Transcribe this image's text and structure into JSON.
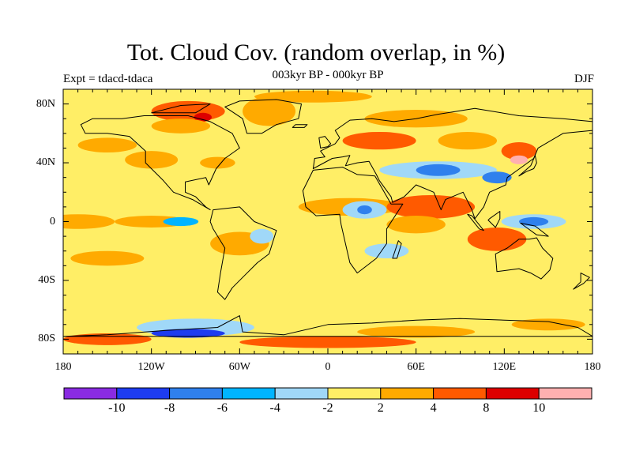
{
  "title": "Tot. Cloud Cov. (random overlap, in %)",
  "subtitle": "003kyr BP - 000kyr BP",
  "experiment": "Expt = tdacd-tdaca",
  "season": "DJF",
  "map": {
    "projection": "cylindrical-equidistant",
    "lon_range": [
      -180,
      180
    ],
    "lat_range": [
      -90,
      90
    ],
    "lat_ticks": [
      {
        "value": 80,
        "label": "80N"
      },
      {
        "value": 40,
        "label": "40N"
      },
      {
        "value": 0,
        "label": "0"
      },
      {
        "value": -40,
        "label": "40S"
      },
      {
        "value": -80,
        "label": "80S"
      }
    ],
    "lon_ticks": [
      {
        "value": -180,
        "label": "180"
      },
      {
        "value": -120,
        "label": "120W"
      },
      {
        "value": -60,
        "label": "60W"
      },
      {
        "value": 0,
        "label": "0"
      },
      {
        "value": 60,
        "label": "60E"
      },
      {
        "value": 120,
        "label": "120E"
      },
      {
        "value": 180,
        "label": "180"
      }
    ],
    "background_color": "#ffee66",
    "coastline_color": "#000000"
  },
  "colorbar": {
    "colors": [
      "#8a2be2",
      "#1e3cf0",
      "#2f80ed",
      "#00b4ff",
      "#a0d8f8",
      "#ffee66",
      "#ffaa00",
      "#ff5a00",
      "#dd0000",
      "#ffb0b0"
    ],
    "labels": [
      "-10",
      "-8",
      "-6",
      "-4",
      "-2",
      "2",
      "4",
      "8",
      "10"
    ]
  },
  "anomaly_regions": [
    {
      "lon": -95,
      "lat": 75,
      "rx": 25,
      "ry": 7,
      "color": "#ff5a00"
    },
    {
      "lon": -85,
      "lat": 71,
      "rx": 6,
      "ry": 3,
      "color": "#dd0000"
    },
    {
      "lon": -100,
      "lat": 65,
      "rx": 20,
      "ry": 5,
      "color": "#ffaa00"
    },
    {
      "lon": -40,
      "lat": 75,
      "rx": 18,
      "ry": 10,
      "color": "#ffaa00"
    },
    {
      "lon": -10,
      "lat": 85,
      "rx": 40,
      "ry": 4,
      "color": "#ffaa00"
    },
    {
      "lon": 60,
      "lat": 70,
      "rx": 35,
      "ry": 6,
      "color": "#ffaa00"
    },
    {
      "lon": 35,
      "lat": 55,
      "rx": 25,
      "ry": 6,
      "color": "#ff5a00"
    },
    {
      "lon": 95,
      "lat": 55,
      "rx": 20,
      "ry": 6,
      "color": "#ffaa00"
    },
    {
      "lon": 130,
      "lat": 48,
      "rx": 12,
      "ry": 6,
      "color": "#ff5a00"
    },
    {
      "lon": 130,
      "lat": 42,
      "rx": 6,
      "ry": 3,
      "color": "#ffb0b0"
    },
    {
      "lon": -150,
      "lat": 52,
      "rx": 20,
      "ry": 5,
      "color": "#ffaa00"
    },
    {
      "lon": -120,
      "lat": 42,
      "rx": 18,
      "ry": 6,
      "color": "#ffaa00"
    },
    {
      "lon": -75,
      "lat": 40,
      "rx": 12,
      "ry": 4,
      "color": "#ffaa00"
    },
    {
      "lon": 75,
      "lat": 35,
      "rx": 40,
      "ry": 6,
      "color": "#a0d8f8"
    },
    {
      "lon": 75,
      "lat": 35,
      "rx": 15,
      "ry": 4,
      "color": "#2f80ed"
    },
    {
      "lon": 115,
      "lat": 30,
      "rx": 10,
      "ry": 4,
      "color": "#2f80ed"
    },
    {
      "lon": 15,
      "lat": 10,
      "rx": 35,
      "ry": 6,
      "color": "#ffaa00"
    },
    {
      "lon": 25,
      "lat": 8,
      "rx": 15,
      "ry": 6,
      "color": "#a0d8f8"
    },
    {
      "lon": 25,
      "lat": 8,
      "rx": 5,
      "ry": 3,
      "color": "#2f80ed"
    },
    {
      "lon": 70,
      "lat": 10,
      "rx": 30,
      "ry": 8,
      "color": "#ff5a00"
    },
    {
      "lon": 60,
      "lat": -2,
      "rx": 20,
      "ry": 6,
      "color": "#ffaa00"
    },
    {
      "lon": 140,
      "lat": 0,
      "rx": 22,
      "ry": 5,
      "color": "#a0d8f8"
    },
    {
      "lon": 140,
      "lat": 0,
      "rx": 10,
      "ry": 3,
      "color": "#2f80ed"
    },
    {
      "lon": 115,
      "lat": -12,
      "rx": 20,
      "ry": 8,
      "color": "#ff5a00"
    },
    {
      "lon": -170,
      "lat": 0,
      "rx": 25,
      "ry": 5,
      "color": "#ffaa00"
    },
    {
      "lon": -120,
      "lat": 0,
      "rx": 25,
      "ry": 4,
      "color": "#ffaa00"
    },
    {
      "lon": -100,
      "lat": 0,
      "rx": 12,
      "ry": 3,
      "color": "#00b4ff"
    },
    {
      "lon": -60,
      "lat": -15,
      "rx": 20,
      "ry": 8,
      "color": "#ffaa00"
    },
    {
      "lon": -45,
      "lat": -10,
      "rx": 8,
      "ry": 5,
      "color": "#a0d8f8"
    },
    {
      "lon": 40,
      "lat": -20,
      "rx": 15,
      "ry": 5,
      "color": "#a0d8f8"
    },
    {
      "lon": -150,
      "lat": -25,
      "rx": 25,
      "ry": 5,
      "color": "#ffaa00"
    },
    {
      "lon": -90,
      "lat": -72,
      "rx": 40,
      "ry": 6,
      "color": "#a0d8f8"
    },
    {
      "lon": -95,
      "lat": -76,
      "rx": 25,
      "ry": 3,
      "color": "#1e3cf0"
    },
    {
      "lon": -150,
      "lat": -80,
      "rx": 30,
      "ry": 4,
      "color": "#ff5a00"
    },
    {
      "lon": 0,
      "lat": -82,
      "rx": 60,
      "ry": 4,
      "color": "#ff5a00"
    },
    {
      "lon": 60,
      "lat": -75,
      "rx": 40,
      "ry": 4,
      "color": "#ffaa00"
    },
    {
      "lon": 150,
      "lat": -70,
      "rx": 25,
      "ry": 4,
      "color": "#ffaa00"
    }
  ],
  "landmasses": [
    {
      "name": "north-america",
      "points": [
        [
          -168,
          66
        ],
        [
          -160,
          70
        ],
        [
          -140,
          70
        ],
        [
          -125,
          72
        ],
        [
          -95,
          72
        ],
        [
          -80,
          68
        ],
        [
          -65,
          60
        ],
        [
          -60,
          50
        ],
        [
          -70,
          43
        ],
        [
          -76,
          36
        ],
        [
          -81,
          25
        ],
        [
          -83,
          30
        ],
        [
          -97,
          27
        ],
        [
          -97,
          20
        ],
        [
          -90,
          17
        ],
        [
          -83,
          10
        ],
        [
          -80,
          8
        ],
        [
          -92,
          15
        ],
        [
          -105,
          20
        ],
        [
          -112,
          28
        ],
        [
          -117,
          33
        ],
        [
          -124,
          40
        ],
        [
          -124,
          48
        ],
        [
          -135,
          58
        ],
        [
          -150,
          60
        ],
        [
          -165,
          60
        ]
      ]
    },
    {
      "name": "greenland",
      "points": [
        [
          -55,
          60
        ],
        [
          -45,
          60
        ],
        [
          -35,
          66
        ],
        [
          -20,
          70
        ],
        [
          -18,
          80
        ],
        [
          -35,
          83
        ],
        [
          -60,
          82
        ],
        [
          -70,
          78
        ],
        [
          -58,
          70
        ]
      ]
    },
    {
      "name": "south-america",
      "points": [
        [
          -78,
          8
        ],
        [
          -60,
          10
        ],
        [
          -50,
          0
        ],
        [
          -35,
          -6
        ],
        [
          -40,
          -22
        ],
        [
          -48,
          -28
        ],
        [
          -58,
          -38
        ],
        [
          -65,
          -45
        ],
        [
          -70,
          -53
        ],
        [
          -75,
          -48
        ],
        [
          -73,
          -35
        ],
        [
          -70,
          -18
        ],
        [
          -78,
          -5
        ],
        [
          -80,
          0
        ]
      ]
    },
    {
      "name": "africa",
      "points": [
        [
          -17,
          21
        ],
        [
          -10,
          35
        ],
        [
          10,
          37
        ],
        [
          20,
          32
        ],
        [
          32,
          31
        ],
        [
          43,
          12
        ],
        [
          51,
          12
        ],
        [
          40,
          -5
        ],
        [
          40,
          -15
        ],
        [
          33,
          -25
        ],
        [
          20,
          -35
        ],
        [
          15,
          -28
        ],
        [
          12,
          -15
        ],
        [
          9,
          -2
        ],
        [
          8,
          5
        ],
        [
          -8,
          4
        ],
        [
          -15,
          10
        ]
      ]
    },
    {
      "name": "eurasia",
      "points": [
        [
          -10,
          36
        ],
        [
          -9,
          43
        ],
        [
          -2,
          44
        ],
        [
          -5,
          48
        ],
        [
          5,
          53
        ],
        [
          8,
          57
        ],
        [
          5,
          62
        ],
        [
          15,
          69
        ],
        [
          30,
          70
        ],
        [
          45,
          68
        ],
        [
          60,
          70
        ],
        [
          75,
          73
        ],
        [
          100,
          77
        ],
        [
          130,
          72
        ],
        [
          160,
          70
        ],
        [
          180,
          68
        ],
        [
          180,
          62
        ],
        [
          160,
          60
        ],
        [
          143,
          50
        ],
        [
          140,
          43
        ],
        [
          129,
          35
        ],
        [
          122,
          30
        ],
        [
          121,
          25
        ],
        [
          110,
          20
        ],
        [
          106,
          10
        ],
        [
          100,
          2
        ],
        [
          98,
          8
        ],
        [
          92,
          20
        ],
        [
          80,
          15
        ],
        [
          77,
          8
        ],
        [
          72,
          20
        ],
        [
          60,
          25
        ],
        [
          57,
          22
        ],
        [
          52,
          17
        ],
        [
          44,
          13
        ],
        [
          43,
          17
        ],
        [
          35,
          28
        ],
        [
          33,
          32
        ],
        [
          28,
          41
        ],
        [
          20,
          40
        ],
        [
          12,
          38
        ],
        [
          15,
          45
        ],
        [
          10,
          44
        ],
        [
          3,
          43
        ]
      ]
    },
    {
      "name": "australia",
      "points": [
        [
          114,
          -22
        ],
        [
          122,
          -18
        ],
        [
          130,
          -12
        ],
        [
          137,
          -12
        ],
        [
          142,
          -11
        ],
        [
          146,
          -18
        ],
        [
          153,
          -25
        ],
        [
          151,
          -33
        ],
        [
          145,
          -39
        ],
        [
          138,
          -35
        ],
        [
          130,
          -32
        ],
        [
          115,
          -34
        ]
      ]
    },
    {
      "name": "antarctica",
      "points": [
        [
          -180,
          -78
        ],
        [
          -150,
          -77
        ],
        [
          -110,
          -74
        ],
        [
          -75,
          -72
        ],
        [
          -60,
          -64
        ],
        [
          -58,
          -75
        ],
        [
          -30,
          -77
        ],
        [
          0,
          -70
        ],
        [
          30,
          -69
        ],
        [
          60,
          -67
        ],
        [
          90,
          -66
        ],
        [
          120,
          -67
        ],
        [
          150,
          -68
        ],
        [
          170,
          -72
        ],
        [
          180,
          -78
        ]
      ]
    },
    {
      "name": "madagascar",
      "points": [
        [
          44,
          -25
        ],
        [
          48,
          -13
        ],
        [
          50,
          -15
        ],
        [
          47,
          -25
        ]
      ]
    },
    {
      "name": "great-britain",
      "points": [
        [
          -5,
          50
        ],
        [
          0,
          51
        ],
        [
          2,
          53
        ],
        [
          -2,
          58
        ],
        [
          -6,
          57
        ]
      ]
    },
    {
      "name": "japan",
      "points": [
        [
          130,
          31
        ],
        [
          135,
          34
        ],
        [
          140,
          36
        ],
        [
          142,
          40
        ],
        [
          141,
          45
        ],
        [
          138,
          38
        ]
      ]
    },
    {
      "name": "borneo",
      "points": [
        [
          109,
          1
        ],
        [
          114,
          -4
        ],
        [
          117,
          2
        ],
        [
          117,
          7
        ],
        [
          110,
          2
        ]
      ]
    },
    {
      "name": "sumatra",
      "points": [
        [
          95,
          5
        ],
        [
          98,
          4
        ],
        [
          106,
          -6
        ],
        [
          103,
          -5
        ]
      ]
    },
    {
      "name": "new-guinea",
      "points": [
        [
          131,
          -1
        ],
        [
          141,
          -3
        ],
        [
          150,
          -10
        ],
        [
          142,
          -9
        ],
        [
          135,
          -4
        ]
      ]
    },
    {
      "name": "new-zealand",
      "points": [
        [
          172,
          -35
        ],
        [
          178,
          -38
        ],
        [
          174,
          -42
        ],
        [
          167,
          -46
        ],
        [
          172,
          -41
        ]
      ]
    },
    {
      "name": "iceland",
      "points": [
        [
          -24,
          64
        ],
        [
          -16,
          64
        ],
        [
          -14,
          66
        ],
        [
          -22,
          66
        ]
      ]
    },
    {
      "name": "arctic-islands",
      "points": [
        [
          -120,
          74
        ],
        [
          -90,
          74
        ],
        [
          -80,
          80
        ],
        [
          -100,
          79
        ]
      ]
    }
  ]
}
